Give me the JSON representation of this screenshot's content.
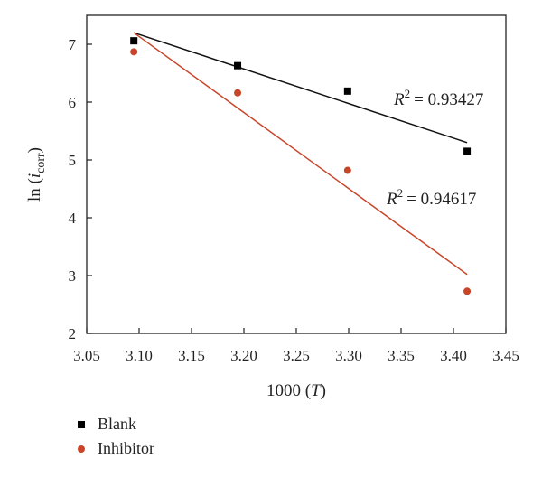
{
  "chart_data": {
    "type": "scatter",
    "xlabel": "1000 (T)",
    "ylabel": "ln (i_corr)",
    "xlim": [
      3.05,
      3.45
    ],
    "ylim": [
      2,
      7.5
    ],
    "x_ticks": [
      "3.05",
      "3.10",
      "3.15",
      "3.20",
      "3.25",
      "3.30",
      "3.35",
      "3.40",
      "3.45"
    ],
    "y_ticks": [
      "2",
      "3",
      "4",
      "5",
      "6",
      "7"
    ],
    "grid": false,
    "legend_position": "bottom-left",
    "series": [
      {
        "name": "Blank",
        "marker": "square",
        "color": "#000000",
        "x": [
          3.095,
          3.194,
          3.299,
          3.413
        ],
        "y": [
          7.06,
          6.63,
          6.19,
          5.15
        ],
        "fit_line": {
          "x": [
            3.095,
            3.413
          ],
          "y": [
            7.2,
            5.3
          ]
        },
        "r2_text": "= 0.93427"
      },
      {
        "name": "Inhibitor",
        "marker": "circle",
        "color": "#c8452a",
        "x": [
          3.095,
          3.194,
          3.299,
          3.413
        ],
        "y": [
          6.87,
          6.16,
          4.82,
          2.73
        ],
        "fit_line": {
          "x": [
            3.095,
            3.413
          ],
          "y": [
            7.2,
            3.02
          ]
        },
        "r2_text": "= 0.94617"
      }
    ]
  }
}
